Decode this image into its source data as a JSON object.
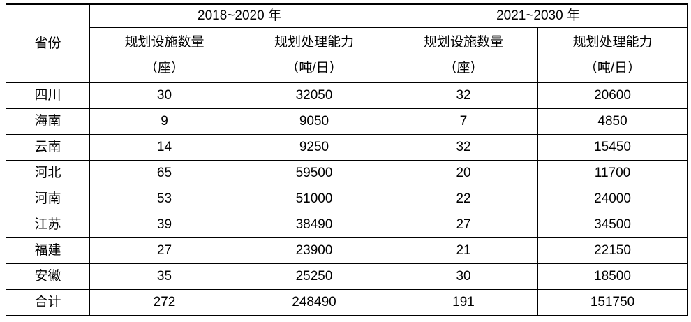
{
  "table": {
    "province_header": "省份",
    "periods": [
      {
        "label": "2018~2020 年",
        "columns": [
          {
            "title": "规划设施数量",
            "unit": "（座）"
          },
          {
            "title": "规划处理能力",
            "unit": "（吨/日）"
          }
        ]
      },
      {
        "label": "2021~2030 年",
        "columns": [
          {
            "title": "规划设施数量",
            "unit": "（座）"
          },
          {
            "title": "规划处理能力",
            "unit": "（吨/日）"
          }
        ]
      }
    ],
    "rows": [
      {
        "province": "四川",
        "values": [
          "30",
          "32050",
          "32",
          "20600"
        ]
      },
      {
        "province": "海南",
        "values": [
          "9",
          "9050",
          "7",
          "4850"
        ]
      },
      {
        "province": "云南",
        "values": [
          "14",
          "9250",
          "32",
          "15450"
        ]
      },
      {
        "province": "河北",
        "values": [
          "65",
          "59500",
          "20",
          "11700"
        ]
      },
      {
        "province": "河南",
        "values": [
          "53",
          "51000",
          "22",
          "24000"
        ]
      },
      {
        "province": "江苏",
        "values": [
          "39",
          "38490",
          "27",
          "34500"
        ]
      },
      {
        "province": "福建",
        "values": [
          "27",
          "23900",
          "21",
          "22150"
        ]
      },
      {
        "province": "安徽",
        "values": [
          "35",
          "25250",
          "30",
          "18500"
        ]
      },
      {
        "province": "合计",
        "values": [
          "272",
          "248490",
          "191",
          "151750"
        ]
      }
    ]
  }
}
